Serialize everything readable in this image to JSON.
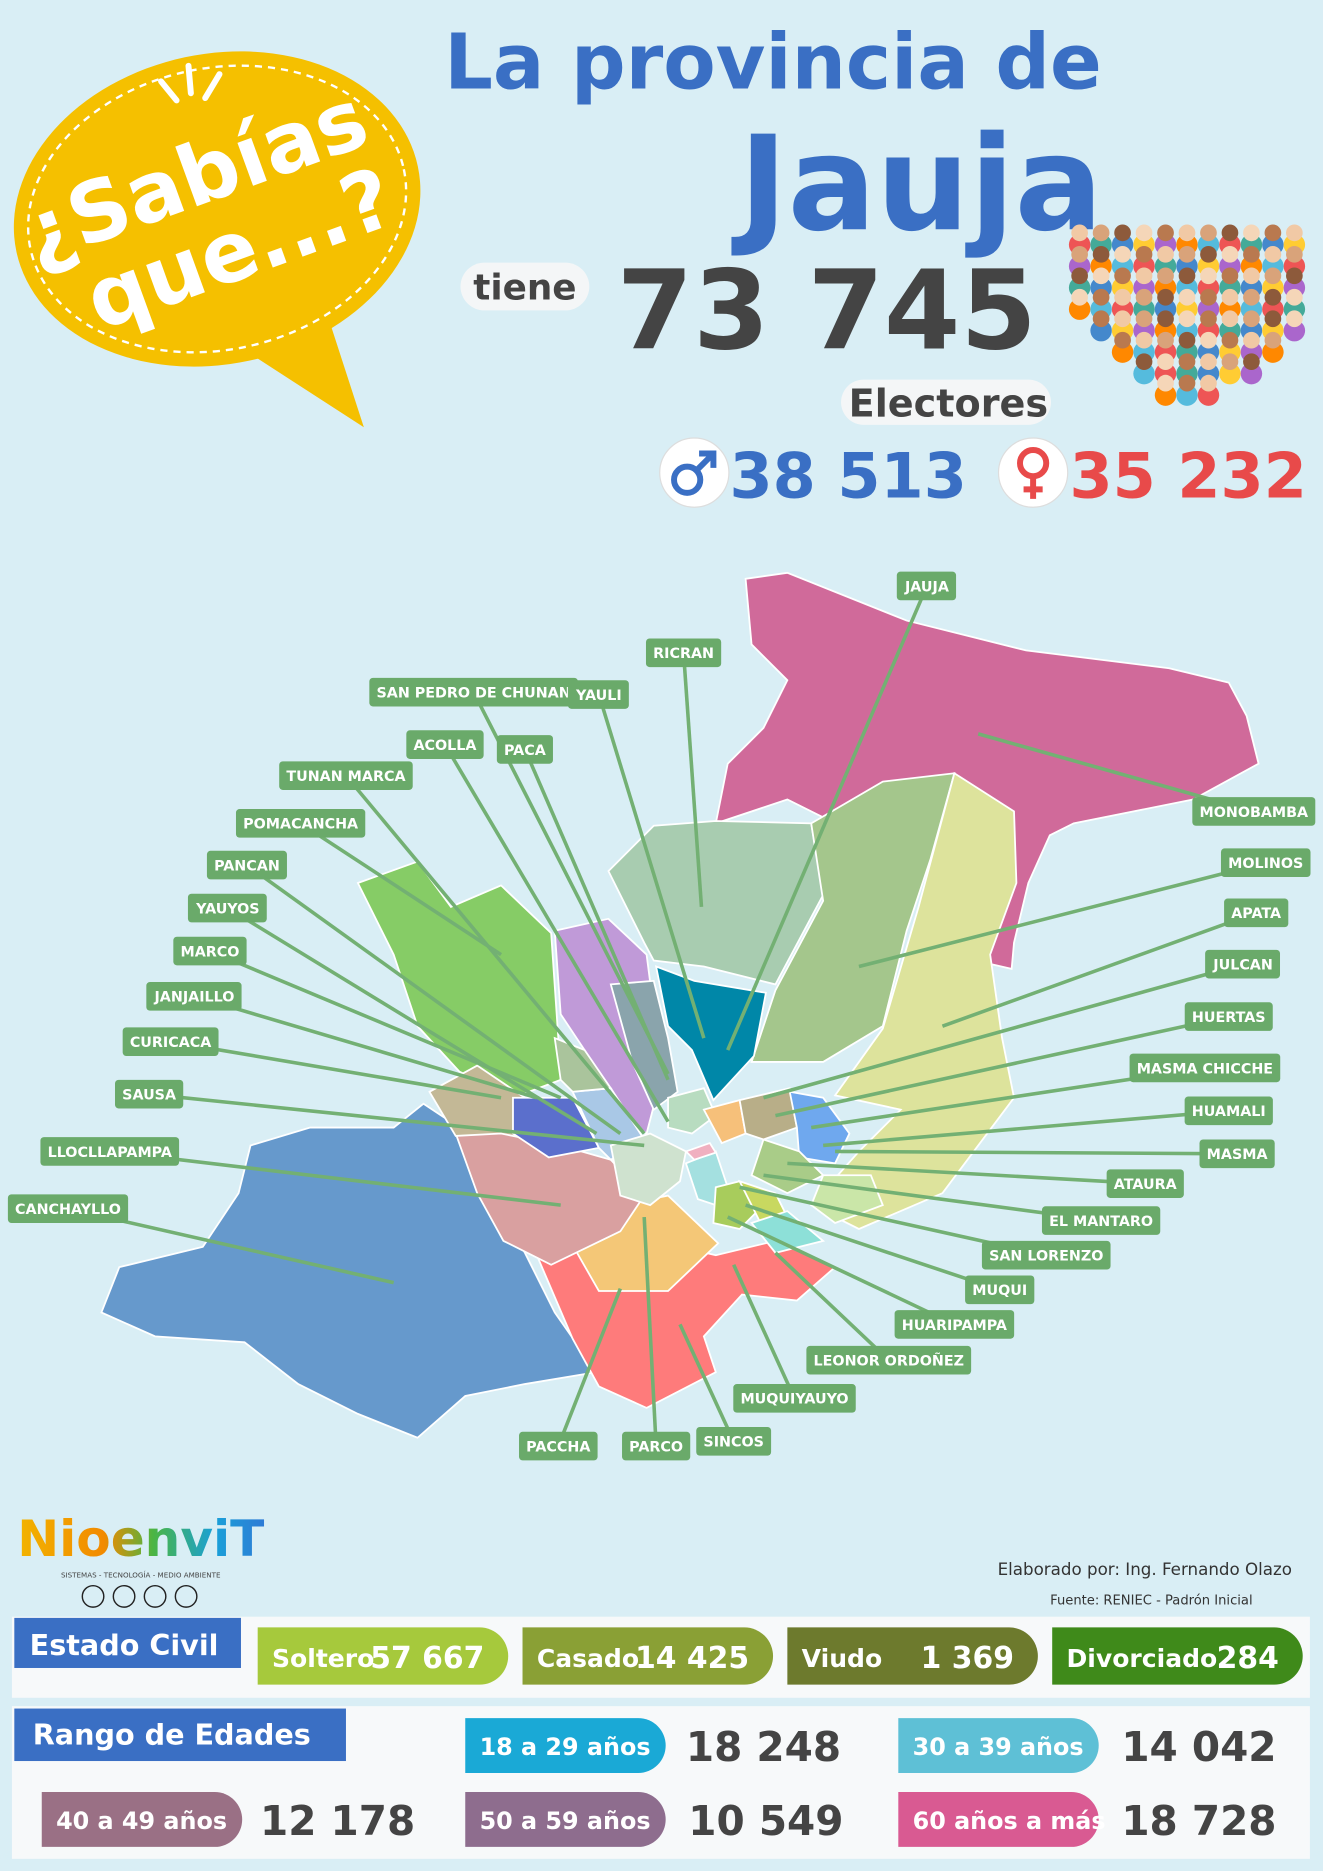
{
  "bubble": {
    "line1": "¿Sabías",
    "line2": "que...?"
  },
  "header": {
    "title_line1": "La provincia de",
    "title_line2": "Jauja",
    "tiene": "tiene",
    "total": "73 745",
    "electores": "Electores",
    "male": "38 513",
    "female": "35 232"
  },
  "map": {
    "districts": [
      "JAUJA",
      "RICRAN",
      "SAN PEDRO DE CHUNAN",
      "YAULI",
      "ACOLLA",
      "PACA",
      "TUNAN MARCA",
      "POMACANCHA",
      "PANCAN",
      "YAUYOS",
      "MARCO",
      "JANJAILLO",
      "CURICACA",
      "SAUSA",
      "LLOCLLAPAMPA",
      "CANCHAYLLO",
      "MONOBAMBA",
      "MOLINOS",
      "APATA",
      "JULCAN",
      "HUERTAS",
      "MASMA CHICCHE",
      "HUAMALI",
      "MASMA",
      "ATAURA",
      "EL MANTARO",
      "SAN LORENZO",
      "MUQUI",
      "HUARIPAMPA",
      "LEONOR ORDOÑEZ",
      "MUQUIYAUYO",
      "SINCOS",
      "PARCO",
      "PACCHA"
    ]
  },
  "logo": {
    "name": "NioenviT",
    "tagline": "SISTEMAS - TECNOLOGÍA - MEDIO AMBIENTE"
  },
  "credits": {
    "author": "Elaborado por: Ing. Fernando Olazo",
    "source": "Fuente: RENIEC - Padrón Inicial"
  },
  "estado_civil": {
    "title": "Estado Civil",
    "items": [
      {
        "label": "Soltero",
        "value": "57 667"
      },
      {
        "label": "Casado",
        "value": "14 425"
      },
      {
        "label": "Viudo",
        "value": "1 369"
      },
      {
        "label": "Divorciado",
        "value": "284"
      }
    ]
  },
  "rango_edades": {
    "title": "Rango de Edades",
    "items": [
      {
        "label": "18 a 29 años",
        "value": "18 248"
      },
      {
        "label": "30 a 39 años",
        "value": "14 042"
      },
      {
        "label": "40 a 49 años",
        "value": "12 178"
      },
      {
        "label": "50 a 59 años",
        "value": "10 549"
      },
      {
        "label": "60 años a más",
        "value": "18 728"
      }
    ]
  }
}
